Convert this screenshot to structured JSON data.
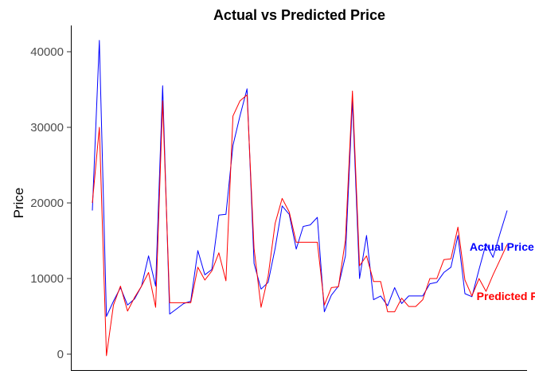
{
  "chart_data": {
    "type": "line",
    "title": "Actual vs Predicted Price",
    "xlabel": "",
    "ylabel": "Price",
    "ylim": [
      -2000,
      43500
    ],
    "y_ticks": [
      0,
      10000,
      20000,
      30000,
      40000
    ],
    "y_tick_labels": [
      "0",
      "10000",
      "20000",
      "30000",
      "40000"
    ],
    "x_ticks_shown": false,
    "grid": false,
    "legend": "none",
    "series": [
      {
        "name": "Actual Price",
        "color": "#0000FF",
        "values": [
          19000,
          41500,
          5000,
          7000,
          8800,
          6500,
          7300,
          9000,
          13000,
          9000,
          35500,
          5300,
          6000,
          6700,
          7000,
          13700,
          10500,
          11200,
          18400,
          18500,
          27600,
          31500,
          35100,
          12000,
          8600,
          9500,
          14000,
          19600,
          18500,
          13900,
          16900,
          17100,
          18100,
          5600,
          7800,
          9000,
          13000,
          33600,
          10000,
          15700,
          7200,
          7700,
          6400,
          8800,
          6700,
          7700,
          7700,
          7700,
          9300,
          9500,
          10800,
          11500,
          15700,
          8000,
          7600,
          11200,
          14600,
          12800,
          16000,
          19000
        ]
      },
      {
        "name": "Predicted Price",
        "color": "#FF0000",
        "values": [
          20000,
          30000,
          -200,
          6500,
          9000,
          5700,
          7500,
          9000,
          10800,
          6200,
          33500,
          6800,
          6800,
          6800,
          6800,
          11500,
          9800,
          11000,
          13400,
          9700,
          31500,
          33500,
          34300,
          14000,
          6200,
          10300,
          17300,
          20600,
          18800,
          14800,
          14800,
          14800,
          14800,
          6500,
          8800,
          8900,
          15100,
          34800,
          11700,
          13000,
          9600,
          9600,
          5600,
          5600,
          7400,
          6300,
          6300,
          7200,
          10000,
          10000,
          12500,
          12600,
          16800,
          9800,
          7700,
          10000,
          8300,
          10500,
          12500,
          14500
        ]
      }
    ],
    "annotations": [
      {
        "text": "Actual Price",
        "color": "#0000FF",
        "x_index": 54,
        "y": 14200
      },
      {
        "text": "Predicted Price",
        "color": "#FF0000",
        "x_index": 55,
        "y": 7700
      }
    ]
  }
}
